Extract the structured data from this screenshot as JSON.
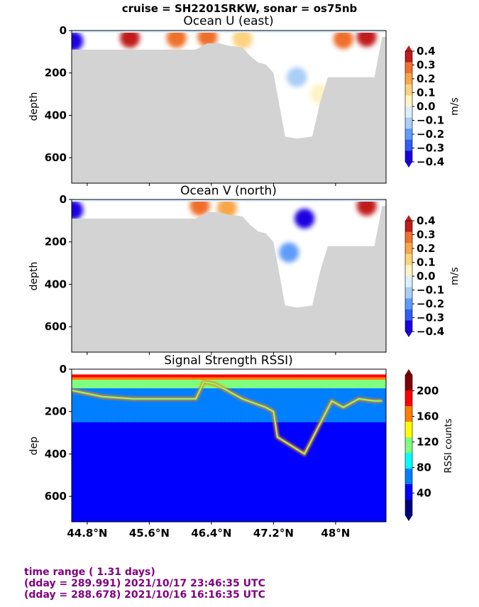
{
  "suptitle": "cruise = SH2201SRKW,  sonar = os75nb",
  "footer": {
    "line1": "time range ( 1.31 days)",
    "line2": "(dday = 289.991) 2021/10/17 23:46:35 UTC",
    "line3": "(dday = 288.678) 2021/10/16 16:16:35 UTC"
  },
  "colors": {
    "land": "#d3d3d3",
    "footer_text": "#800080",
    "div_scale": [
      "#1a00e0",
      "#2f5df5",
      "#5f9cf7",
      "#a9cdf7",
      "#dcefff",
      "#fff3c4",
      "#fcd37f",
      "#f9a64a",
      "#f0702c",
      "#c01c1c"
    ],
    "jet_scale": [
      "#00007f",
      "#0000ff",
      "#007fff",
      "#00ffff",
      "#7fff7f",
      "#ffff00",
      "#ff7f00",
      "#ff0000",
      "#7f0000"
    ]
  },
  "x_ticks": [
    "44.8°N",
    "45.6°N",
    "46.4°N",
    "47.2°N",
    "48°N"
  ],
  "chart_data": [
    {
      "type": "heatmap",
      "title": "Ocean U (east)",
      "xlabel": "",
      "ylabel": "depth",
      "xlim": [
        44.6,
        48.65
      ],
      "ylim": [
        720,
        0
      ],
      "y_ticks": [
        "0",
        "200",
        "400",
        "600"
      ],
      "colorbar": {
        "label": "m/s",
        "ticks": [
          "0.4",
          "0.3",
          "0.2",
          "0.1",
          "0.0",
          "−0.1",
          "−0.2",
          "−0.3",
          "−0.4"
        ],
        "range": [
          -0.4,
          0.4
        ]
      },
      "bathymetry_profile": [
        [
          44.6,
          90
        ],
        [
          44.8,
          90
        ],
        [
          45.0,
          90
        ],
        [
          45.4,
          90
        ],
        [
          45.8,
          90
        ],
        [
          46.2,
          90
        ],
        [
          46.35,
          60
        ],
        [
          46.5,
          60
        ],
        [
          46.6,
          70
        ],
        [
          46.8,
          80
        ],
        [
          46.9,
          120
        ],
        [
          47.0,
          150
        ],
        [
          47.1,
          160
        ],
        [
          47.2,
          200
        ],
        [
          47.25,
          300
        ],
        [
          47.35,
          500
        ],
        [
          47.5,
          510
        ],
        [
          47.7,
          500
        ],
        [
          47.8,
          340
        ],
        [
          47.9,
          220
        ],
        [
          48.2,
          220
        ],
        [
          48.4,
          220
        ],
        [
          48.5,
          220
        ],
        [
          48.6,
          30
        ],
        [
          48.65,
          30
        ]
      ],
      "features": [
        {
          "lat": 44.62,
          "depth": 50,
          "value": -0.4
        },
        {
          "lat": 45.35,
          "depth": 35,
          "value": 0.4
        },
        {
          "lat": 45.95,
          "depth": 35,
          "value": 0.3
        },
        {
          "lat": 46.35,
          "depth": 30,
          "value": 0.25
        },
        {
          "lat": 46.8,
          "depth": 40,
          "value": 0.15
        },
        {
          "lat": 47.5,
          "depth": 220,
          "value": -0.1
        },
        {
          "lat": 47.8,
          "depth": 300,
          "value": 0.05
        },
        {
          "lat": 48.1,
          "depth": 40,
          "value": 0.3
        },
        {
          "lat": 48.4,
          "depth": 30,
          "value": 0.4
        }
      ]
    },
    {
      "type": "heatmap",
      "title": "Ocean V (north)",
      "xlabel": "",
      "ylabel": "depth",
      "xlim": [
        44.6,
        48.65
      ],
      "ylim": [
        720,
        0
      ],
      "y_ticks": [
        "0",
        "200",
        "400",
        "600"
      ],
      "colorbar": {
        "label": "m/s",
        "ticks": [
          "0.4",
          "0.3",
          "0.2",
          "0.1",
          "0.0",
          "−0.1",
          "−0.2",
          "−0.3",
          "−0.4"
        ],
        "range": [
          -0.4,
          0.4
        ]
      },
      "bathymetry_profile": [
        [
          44.6,
          90
        ],
        [
          44.8,
          90
        ],
        [
          45.0,
          90
        ],
        [
          45.4,
          90
        ],
        [
          45.8,
          90
        ],
        [
          46.2,
          90
        ],
        [
          46.35,
          60
        ],
        [
          46.5,
          60
        ],
        [
          46.6,
          70
        ],
        [
          46.8,
          80
        ],
        [
          46.9,
          120
        ],
        [
          47.0,
          150
        ],
        [
          47.1,
          160
        ],
        [
          47.2,
          200
        ],
        [
          47.25,
          300
        ],
        [
          47.35,
          500
        ],
        [
          47.5,
          510
        ],
        [
          47.7,
          500
        ],
        [
          47.8,
          340
        ],
        [
          47.9,
          220
        ],
        [
          48.2,
          220
        ],
        [
          48.4,
          220
        ],
        [
          48.5,
          220
        ],
        [
          48.6,
          30
        ],
        [
          48.65,
          30
        ]
      ],
      "features": [
        {
          "lat": 44.62,
          "depth": 50,
          "value": -0.4
        },
        {
          "lat": 46.25,
          "depth": 30,
          "value": 0.3
        },
        {
          "lat": 46.6,
          "depth": 40,
          "value": 0.2
        },
        {
          "lat": 47.6,
          "depth": 90,
          "value": -0.4
        },
        {
          "lat": 47.4,
          "depth": 250,
          "value": -0.2
        },
        {
          "lat": 48.4,
          "depth": 30,
          "value": 0.4
        }
      ]
    },
    {
      "type": "heatmap",
      "title": "Signal Strength RSSI)",
      "xlabel": "",
      "ylabel": "dep",
      "xlim": [
        44.6,
        48.65
      ],
      "ylim": [
        720,
        0
      ],
      "y_ticks": [
        "0",
        "200",
        "400",
        "600"
      ],
      "colorbar": {
        "label": "RSSI counts",
        "ticks": [
          "200",
          "160",
          "120",
          "80",
          "40"
        ],
        "range": [
          5,
          225
        ]
      },
      "bottom_echo_profile": [
        [
          44.6,
          100
        ],
        [
          44.8,
          115
        ],
        [
          45.0,
          130
        ],
        [
          45.4,
          140
        ],
        [
          45.8,
          140
        ],
        [
          46.2,
          140
        ],
        [
          46.3,
          60
        ],
        [
          46.45,
          70
        ],
        [
          46.6,
          100
        ],
        [
          46.8,
          140
        ],
        [
          46.95,
          160
        ],
        [
          47.1,
          180
        ],
        [
          47.2,
          200
        ],
        [
          47.25,
          320
        ],
        [
          47.6,
          400
        ],
        [
          47.95,
          150
        ],
        [
          48.1,
          180
        ],
        [
          48.3,
          140
        ],
        [
          48.5,
          150
        ],
        [
          48.6,
          150
        ]
      ]
    }
  ]
}
